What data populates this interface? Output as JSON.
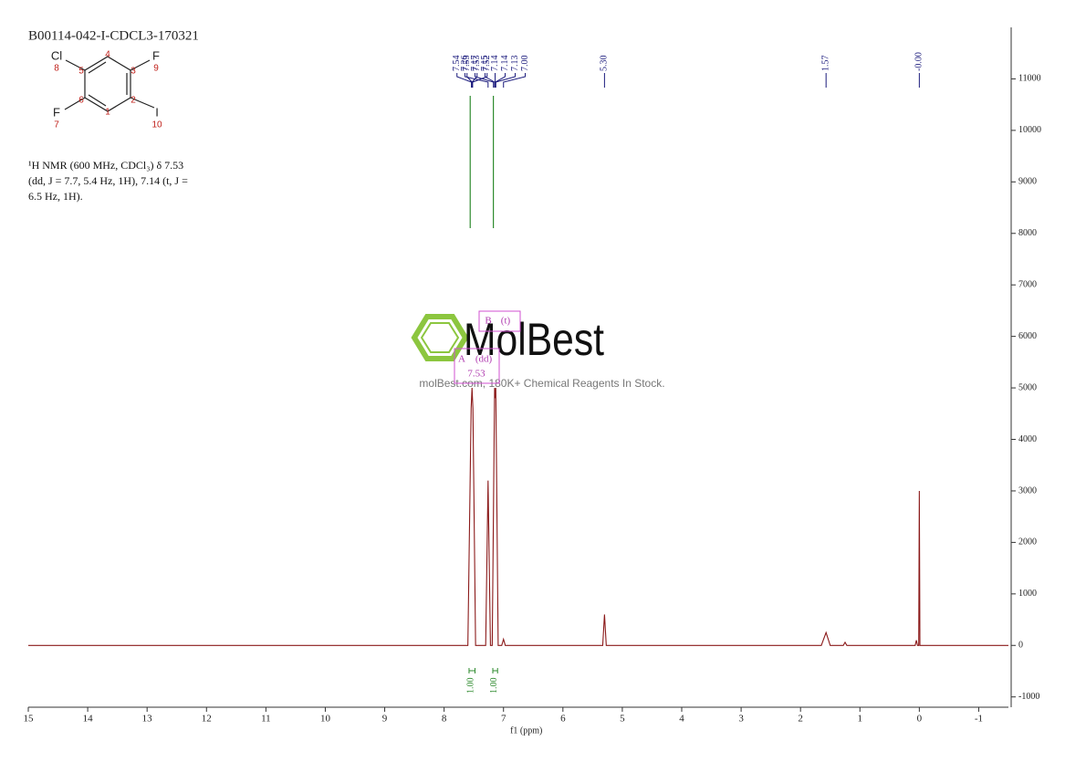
{
  "chart_data": {
    "type": "nmr",
    "title": "B00114-042-I-CDCL3-170321",
    "x_label": "f1 (ppm)",
    "xlim": [
      15,
      -1.5
    ],
    "xticks": [
      15,
      14,
      13,
      12,
      11,
      10,
      9,
      8,
      7,
      6,
      5,
      4,
      3,
      2,
      1,
      0,
      -1
    ],
    "ylim": [
      -1200,
      12000
    ],
    "yticks": [
      -1000,
      0,
      1000,
      2000,
      3000,
      4000,
      5000,
      6000,
      7000,
      8000,
      9000,
      10000,
      11000
    ],
    "series": [
      {
        "color": "#8b1a1a",
        "x": [
          15,
          7.6,
          7.545,
          7.53,
          7.515,
          7.47,
          7.3,
          7.26,
          7.22,
          7.19,
          7.15,
          7.14,
          7.13,
          7.09,
          7.03,
          7.0,
          6.97,
          5.33,
          5.3,
          5.27,
          1.65,
          1.57,
          1.5,
          1.28,
          1.25,
          1.22,
          0.07,
          0.05,
          0.03,
          0.01,
          0.0,
          -0.01,
          -1.5
        ],
        "values": [
          0,
          0,
          4600,
          5000,
          4600,
          0,
          0,
          3200,
          0,
          0,
          5000,
          4800,
          5000,
          0,
          0,
          120,
          0,
          0,
          600,
          0,
          0,
          250,
          0,
          0,
          60,
          0,
          0,
          100,
          0,
          0,
          3000,
          0,
          0
        ]
      }
    ],
    "peak_picks": [
      7.54,
      7.53,
      7.53,
      7.52,
      7.26,
      7.17,
      7.15,
      7.14,
      7.14,
      7.13,
      {
        "value": 7,
        "label": "7.00"
      },
      {
        "value": 5.3,
        "label": "5.30"
      },
      1.57,
      {
        "value": 0,
        "label": "-0.00"
      }
    ],
    "integrals": [
      {
        "range": [
          7.58,
          7.48
        ],
        "value": {
          "value": 1,
          "label": "1.00"
        }
      },
      {
        "range": [
          7.18,
          7.1
        ],
        "value": {
          "value": 1,
          "label": "1.00"
        }
      }
    ],
    "multiplets": [
      {
        "name": "A",
        "kind": "(dd)",
        "shift": "7.53"
      },
      {
        "name": "B",
        "kind": "(t)"
      }
    ]
  },
  "structure": {
    "atoms": [
      {
        "symbol": "Cl",
        "number": 8
      },
      {
        "symbol": "F",
        "number": 9
      },
      {
        "symbol": "F",
        "number": 7
      },
      {
        "symbol": "I",
        "number": 10
      }
    ],
    "ring_numbers": [
      1,
      2,
      3,
      4,
      5,
      6
    ]
  },
  "description": [
    "¹H NMR (600 MHz, CDCl₃) δ 7.53",
    "(dd, J = 7.7, 5.4 Hz, 1H), 7.14 (t, J =",
    "6.5 Hz, 1H)."
  ],
  "watermark": {
    "brand": "MolBest",
    "tagline": "molBest.com, 180K+ Chemical Reagents In Stock."
  }
}
